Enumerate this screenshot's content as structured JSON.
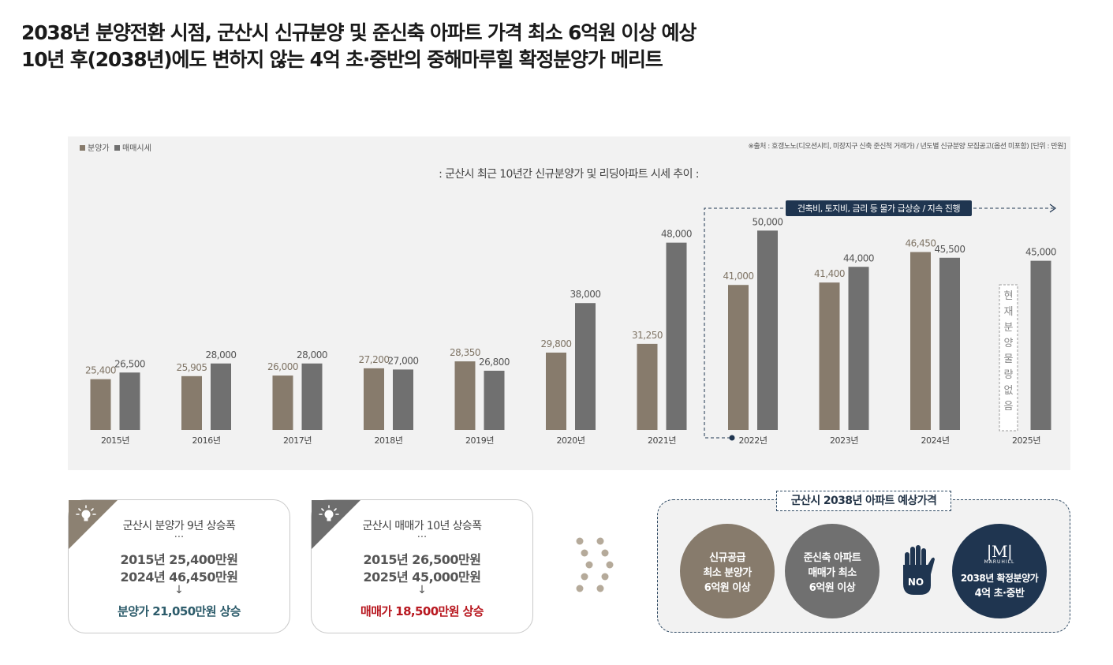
{
  "headline": {
    "line1": "2038년 분양전환 시점, 군산시 신규분양 및 준신축 아파트 가격 최소 6억원 이상 예상",
    "line2": "10년 후(2038년)에도 변하지 않는 4억 초·중반의 중해마루힐 확정분양가 메리트"
  },
  "colors": {
    "sale": "#877b6c",
    "market": "#707070",
    "navy": "#1f3550",
    "accent_teal": "#2d5c6b",
    "accent_red": "#b8171f"
  },
  "chart_data": {
    "type": "bar",
    "title": ": 군산시 최근 10년간 신규분양가 및 리딩아파트 시세 추이 :",
    "source": "※출처 : 호갱노노(디오션시티, 미장지구 신축 준신척 거래가) / 년도별 신규분양 모집공고(옵션 미포함) [단위 : 만원]",
    "legend": [
      "분양가",
      "매매시세"
    ],
    "legend_position": "top-left",
    "categories": [
      "2015년",
      "2016년",
      "2017년",
      "2018년",
      "2019년",
      "2020년",
      "2021년",
      "2022년",
      "2023년",
      "2024년",
      "2025년"
    ],
    "series": [
      {
        "name": "분양가",
        "values": [
          25400,
          25905,
          26000,
          27200,
          28350,
          29800,
          31250,
          41000,
          41400,
          46450,
          null
        ]
      },
      {
        "name": "매매시세",
        "values": [
          26500,
          28000,
          28000,
          27000,
          26800,
          38000,
          48000,
          50000,
          44000,
          45500,
          45000
        ]
      }
    ],
    "value_labels": {
      "분양가": [
        "25,400",
        "25,905",
        "26,000",
        "27,200",
        "28,350",
        "29,800",
        "31,250",
        "41,000",
        "41,400",
        "46,450",
        ""
      ],
      "매매시세": [
        "26,500",
        "28,000",
        "28,000",
        "27,000",
        "26,800",
        "38,000",
        "48,000",
        "50,000",
        "44,000",
        "45,500",
        "45,000"
      ]
    },
    "ylim": [
      17000,
      52000
    ],
    "grid": false,
    "annotation_trend": "건축비, 토지비, 금리 등 물가 급상승 / 지속 진행",
    "annotation_no_supply": "현재분양물량없음"
  },
  "box1": {
    "title": "군산시 분양가 9년 상승폭",
    "dots": "···",
    "line1": "2015년 25,400만원",
    "line2": "2024년 46,450만원",
    "arrow": "↓",
    "result": "분양가 21,050만원 상승"
  },
  "box2": {
    "title": "군산시 매매가 10년 상승폭",
    "dots": "···",
    "line1": "2015년 26,500만원",
    "line2": "2025년 45,000만원",
    "arrow": "↓",
    "result": "매매가 18,500만원 상승"
  },
  "forecast": {
    "label": "군산시 2038년 아파트 예상가격",
    "circle1": [
      "신규공급",
      "최소 분양가",
      "6억원 이상"
    ],
    "circle2": [
      "준신축 아파트",
      "매매가 최소",
      "6억원 이상"
    ],
    "no_label": "NO",
    "logo_mark": "M",
    "logo_text": "MARUHILL",
    "circle3": [
      "2038년 확정분양가",
      "4억 초·중반"
    ]
  }
}
